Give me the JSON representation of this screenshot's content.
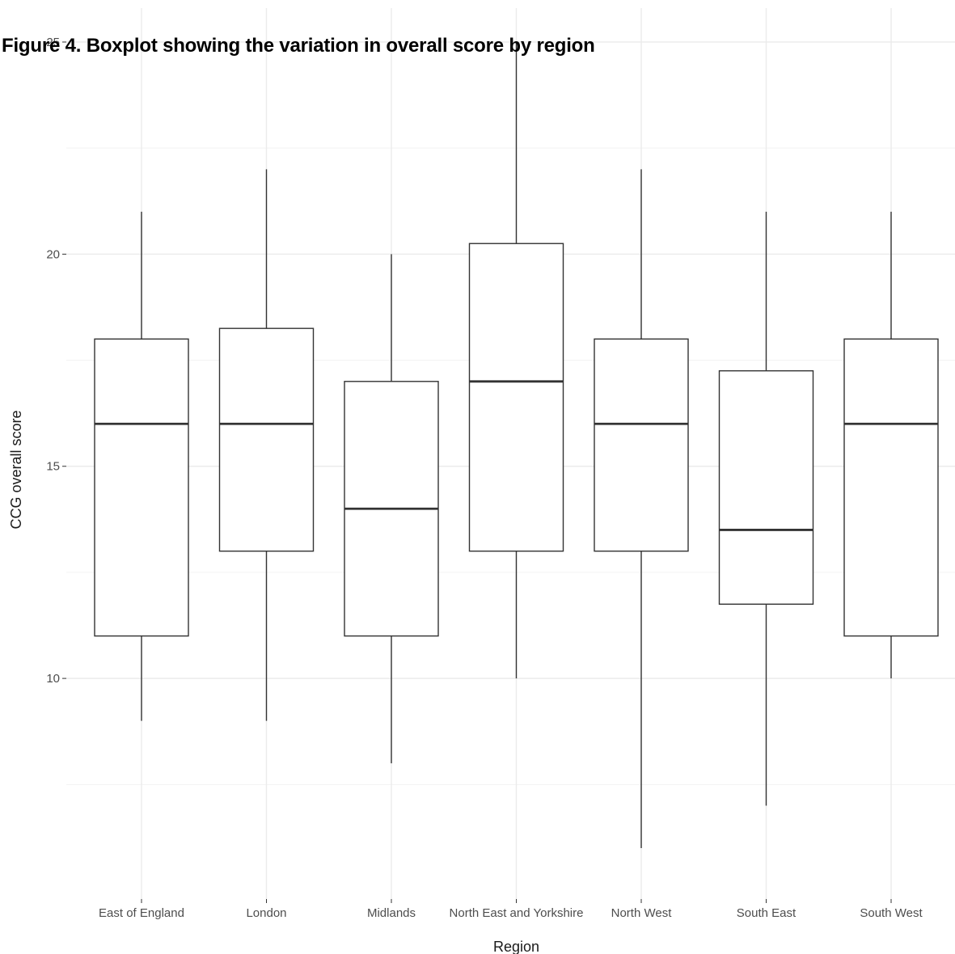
{
  "figure": {
    "title": "Figure 4. Boxplot showing the variation in overall score by region"
  },
  "chart_data": {
    "type": "boxplot",
    "title": "",
    "xlabel": "Region",
    "ylabel": "CCG overall score",
    "ylim": [
      4.8,
      25.8
    ],
    "y_ticks": [
      10,
      15,
      20,
      25
    ],
    "y_tick_labels": [
      "10",
      "15",
      "20",
      "25"
    ],
    "grid": true,
    "categories": [
      "East of England",
      "London",
      "Midlands",
      "North East and Yorkshire",
      "North West",
      "South East",
      "South West"
    ],
    "boxes": [
      {
        "category": "East of England",
        "whisker_low": 9,
        "q1": 11,
        "median": 16,
        "q3": 18,
        "whisker_high": 21
      },
      {
        "category": "London",
        "whisker_low": 9,
        "q1": 13,
        "median": 16,
        "q3": 18.25,
        "whisker_high": 22
      },
      {
        "category": "Midlands",
        "whisker_low": 8,
        "q1": 11,
        "median": 14,
        "q3": 17,
        "whisker_high": 20
      },
      {
        "category": "North East and Yorkshire",
        "whisker_low": 10,
        "q1": 13,
        "median": 17,
        "q3": 20.25,
        "whisker_high": 25
      },
      {
        "category": "North West",
        "whisker_low": 6,
        "q1": 13,
        "median": 16,
        "q3": 18,
        "whisker_high": 22
      },
      {
        "category": "South East",
        "whisker_low": 7,
        "q1": 11.75,
        "median": 13.5,
        "q3": 17.25,
        "whisker_high": 21
      },
      {
        "category": "South West",
        "whisker_low": 10,
        "q1": 11,
        "median": 16,
        "q3": 18,
        "whisker_high": 21
      }
    ]
  }
}
